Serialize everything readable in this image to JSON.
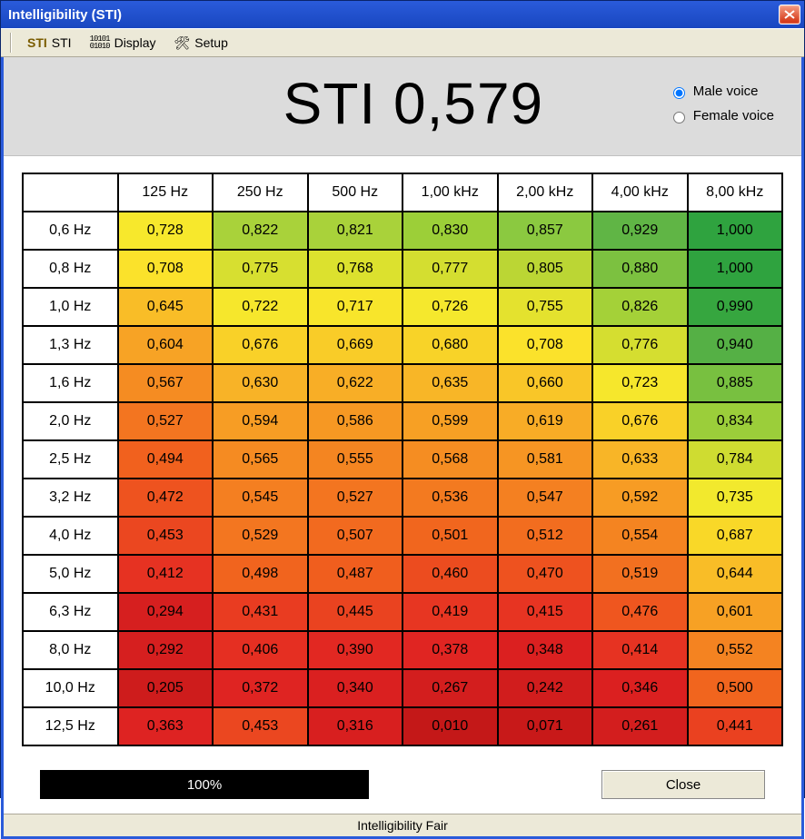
{
  "window_title": "Intelligibility (STI)",
  "toolbar": {
    "sti1_label": "STI",
    "sti2_label": "STI",
    "display_label": "Display",
    "setup_label": "Setup"
  },
  "big_prefix": "STI ",
  "big_value": "0,579",
  "voice": {
    "male_label": "Male voice",
    "female_label": "Female voice",
    "selected": "male"
  },
  "table": {
    "col_headers": [
      "125 Hz",
      "250 Hz",
      "500 Hz",
      "1,00 kHz",
      "2,00 kHz",
      "4,00 kHz",
      "8,00 kHz"
    ],
    "row_headers": [
      "0,6 Hz",
      "0,8 Hz",
      "1,0 Hz",
      "1,3 Hz",
      "1,6 Hz",
      "2,0 Hz",
      "2,5 Hz",
      "3,2 Hz",
      "4,0 Hz",
      "5,0 Hz",
      "6,3 Hz",
      "8,0 Hz",
      "10,0 Hz",
      "12,5 Hz"
    ],
    "cells": [
      [
        {
          "v": "0,728",
          "c": "#f7e82c"
        },
        {
          "v": "0,822",
          "c": "#a9d23a"
        },
        {
          "v": "0,821",
          "c": "#a9d23a"
        },
        {
          "v": "0,830",
          "c": "#9ccf38"
        },
        {
          "v": "0,857",
          "c": "#8bc940"
        },
        {
          "v": "0,929",
          "c": "#60b545"
        },
        {
          "v": "1,000",
          "c": "#2fa33f"
        }
      ],
      [
        {
          "v": "0,708",
          "c": "#fbe22b"
        },
        {
          "v": "0,775",
          "c": "#d7df30"
        },
        {
          "v": "0,768",
          "c": "#dce12e"
        },
        {
          "v": "0,777",
          "c": "#d4de30"
        },
        {
          "v": "0,805",
          "c": "#bbd634"
        },
        {
          "v": "0,880",
          "c": "#7cc140"
        },
        {
          "v": "1,000",
          "c": "#2fa33f"
        }
      ],
      [
        {
          "v": "0,645",
          "c": "#f9bd27"
        },
        {
          "v": "0,722",
          "c": "#f6e72c"
        },
        {
          "v": "0,717",
          "c": "#f8e52b"
        },
        {
          "v": "0,726",
          "c": "#f5e82d"
        },
        {
          "v": "0,755",
          "c": "#e4e22e"
        },
        {
          "v": "0,826",
          "c": "#a4d138"
        },
        {
          "v": "0,990",
          "c": "#36a63f"
        }
      ],
      [
        {
          "v": "0,604",
          "c": "#f7a325"
        },
        {
          "v": "0,676",
          "c": "#f9d128"
        },
        {
          "v": "0,669",
          "c": "#f9cc28"
        },
        {
          "v": "0,680",
          "c": "#f8d328"
        },
        {
          "v": "0,708",
          "c": "#fbe22b"
        },
        {
          "v": "0,776",
          "c": "#d5de30"
        },
        {
          "v": "0,940",
          "c": "#55b045"
        }
      ],
      [
        {
          "v": "0,567",
          "c": "#f58c22"
        },
        {
          "v": "0,630",
          "c": "#f8b327"
        },
        {
          "v": "0,622",
          "c": "#f8ae26"
        },
        {
          "v": "0,635",
          "c": "#f8b627"
        },
        {
          "v": "0,660",
          "c": "#f9c628"
        },
        {
          "v": "0,723",
          "c": "#f6e72c"
        },
        {
          "v": "0,885",
          "c": "#78c040"
        }
      ],
      [
        {
          "v": "0,527",
          "c": "#f37520"
        },
        {
          "v": "0,594",
          "c": "#f79d24"
        },
        {
          "v": "0,586",
          "c": "#f69823"
        },
        {
          "v": "0,599",
          "c": "#f7a024"
        },
        {
          "v": "0,619",
          "c": "#f8ac26"
        },
        {
          "v": "0,676",
          "c": "#f9d128"
        },
        {
          "v": "0,834",
          "c": "#9bce3a"
        }
      ],
      [
        {
          "v": "0,494",
          "c": "#f1611e"
        },
        {
          "v": "0,565",
          "c": "#f58b22"
        },
        {
          "v": "0,555",
          "c": "#f48521"
        },
        {
          "v": "0,568",
          "c": "#f58d22"
        },
        {
          "v": "0,581",
          "c": "#f69523"
        },
        {
          "v": "0,633",
          "c": "#f8b527"
        },
        {
          "v": "0,784",
          "c": "#cfdc31"
        }
      ],
      [
        {
          "v": "0,472",
          "c": "#ee531f"
        },
        {
          "v": "0,545",
          "c": "#f47f21"
        },
        {
          "v": "0,527",
          "c": "#f37520"
        },
        {
          "v": "0,536",
          "c": "#f37a20"
        },
        {
          "v": "0,547",
          "c": "#f48021"
        },
        {
          "v": "0,592",
          "c": "#f79c24"
        },
        {
          "v": "0,735",
          "c": "#f2e92d"
        }
      ],
      [
        {
          "v": "0,453",
          "c": "#eb4720"
        },
        {
          "v": "0,529",
          "c": "#f37620"
        },
        {
          "v": "0,507",
          "c": "#f26a1f"
        },
        {
          "v": "0,501",
          "c": "#f1661e"
        },
        {
          "v": "0,512",
          "c": "#f26d1f"
        },
        {
          "v": "0,554",
          "c": "#f48421"
        },
        {
          "v": "0,687",
          "c": "#f9d828"
        }
      ],
      [
        {
          "v": "0,412",
          "c": "#e63222"
        },
        {
          "v": "0,498",
          "c": "#f1641e"
        },
        {
          "v": "0,487",
          "c": "#f05e1e"
        },
        {
          "v": "0,460",
          "c": "#ec4c1f"
        },
        {
          "v": "0,470",
          "c": "#ee521f"
        },
        {
          "v": "0,519",
          "c": "#f27020"
        },
        {
          "v": "0,644",
          "c": "#f9bd27"
        }
      ],
      [
        {
          "v": "0,294",
          "c": "#d61f1f"
        },
        {
          "v": "0,431",
          "c": "#e93c21"
        },
        {
          "v": "0,445",
          "c": "#ea4320"
        },
        {
          "v": "0,419",
          "c": "#e73622"
        },
        {
          "v": "0,415",
          "c": "#e73422"
        },
        {
          "v": "0,476",
          "c": "#ef561f"
        },
        {
          "v": "0,601",
          "c": "#f7a124"
        }
      ],
      [
        {
          "v": "0,292",
          "c": "#d61f1f"
        },
        {
          "v": "0,406",
          "c": "#e52f22"
        },
        {
          "v": "0,390",
          "c": "#e22822"
        },
        {
          "v": "0,378",
          "c": "#e02522"
        },
        {
          "v": "0,348",
          "c": "#db2020"
        },
        {
          "v": "0,414",
          "c": "#e63322"
        },
        {
          "v": "0,552",
          "c": "#f48321"
        }
      ],
      [
        {
          "v": "0,205",
          "c": "#ce1c1c"
        },
        {
          "v": "0,372",
          "c": "#df2422"
        },
        {
          "v": "0,340",
          "c": "#da2020"
        },
        {
          "v": "0,267",
          "c": "#d31e1e"
        },
        {
          "v": "0,242",
          "c": "#d11d1d"
        },
        {
          "v": "0,346",
          "c": "#db2020"
        },
        {
          "v": "0,500",
          "c": "#f1651e"
        }
      ],
      [
        {
          "v": "0,363",
          "c": "#de2322"
        },
        {
          "v": "0,453",
          "c": "#eb4720"
        },
        {
          "v": "0,316",
          "c": "#d81f1f"
        },
        {
          "v": "0,010",
          "c": "#c41818"
        },
        {
          "v": "0,071",
          "c": "#c81919"
        },
        {
          "v": "0,261",
          "c": "#d31e1e"
        },
        {
          "v": "0,441",
          "c": "#ea4120"
        }
      ]
    ]
  },
  "progress_label": "100%",
  "close_label": "Close",
  "status_label": "Intelligibility Fair"
}
